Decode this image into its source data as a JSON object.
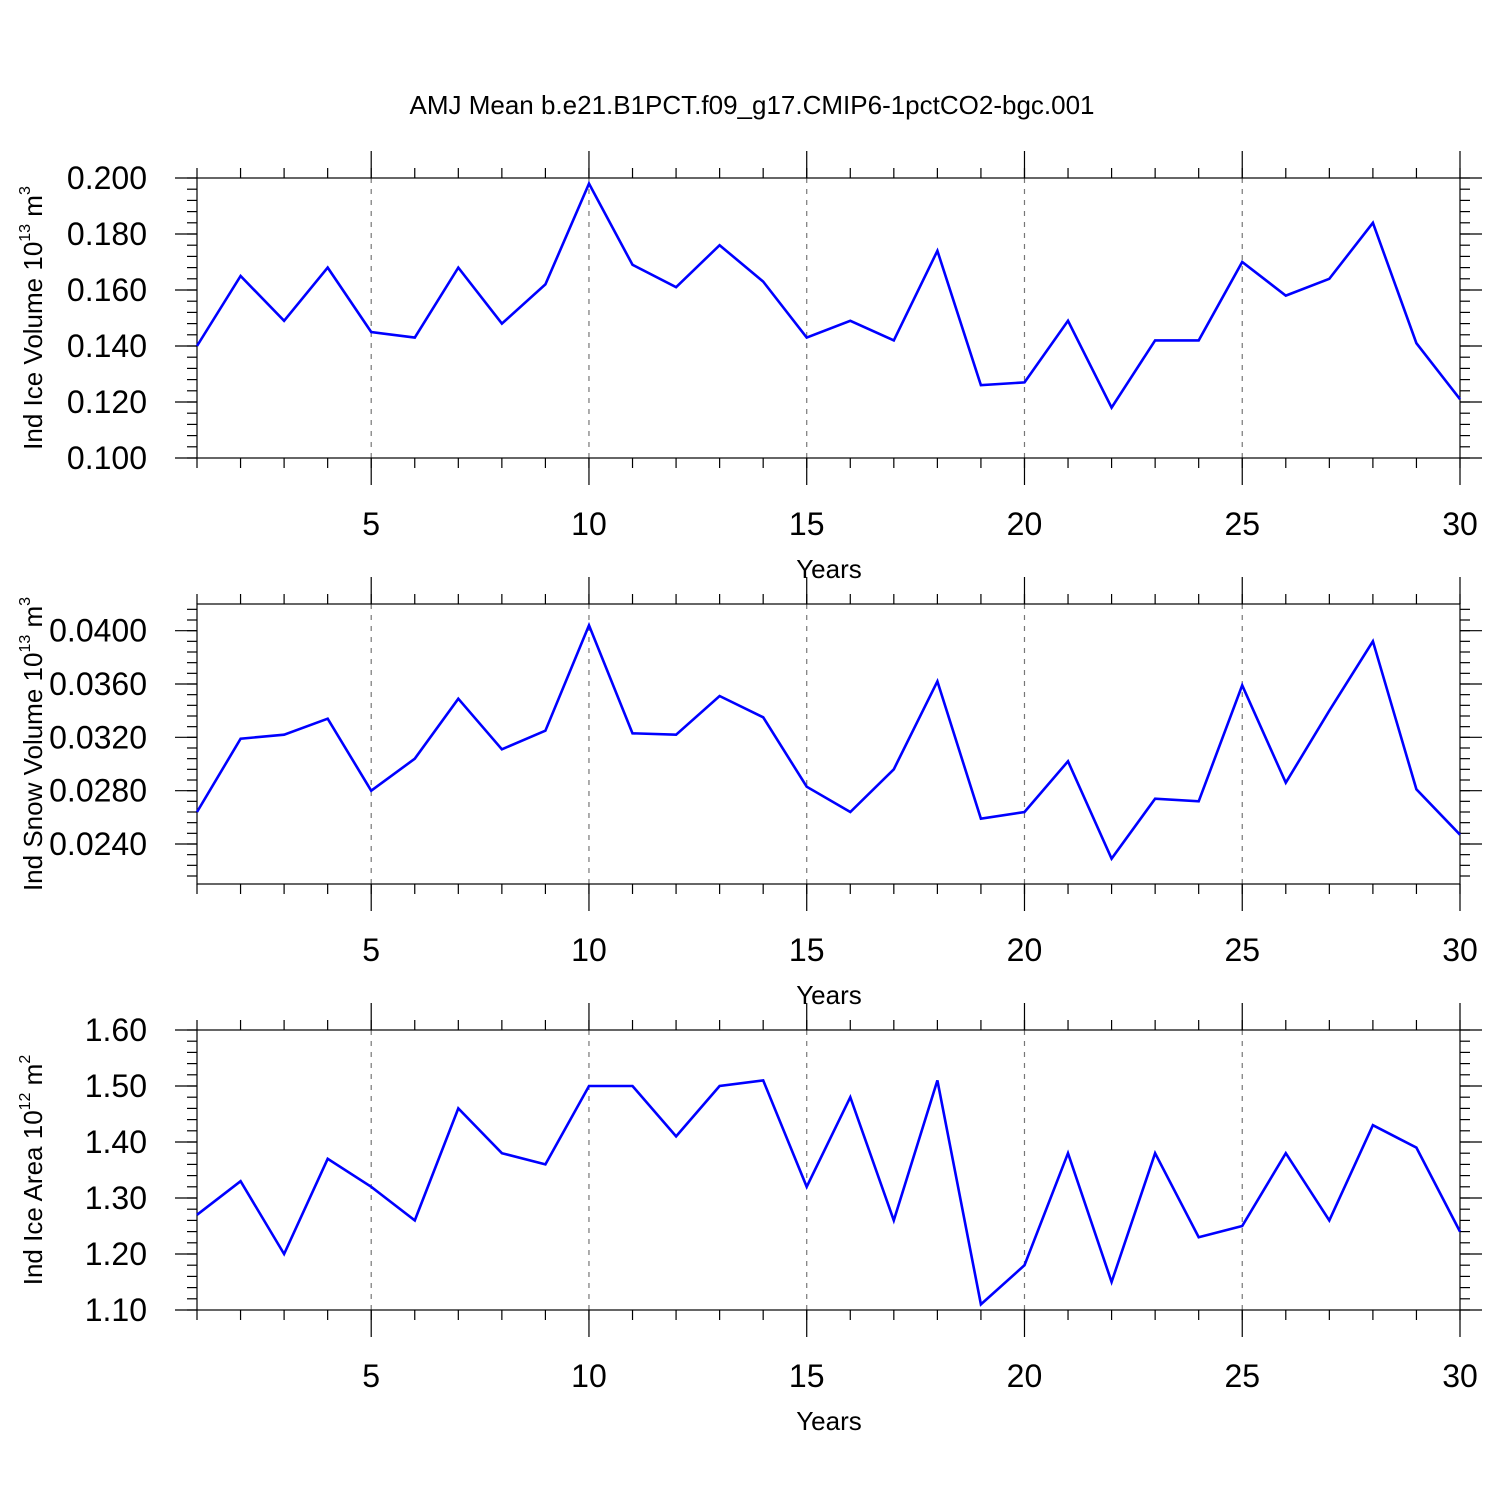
{
  "figure": {
    "title": "AMJ Mean b.e21.B1PCT.f09_g17.CMIP6-1pctCO2-bgc.001",
    "line_color": "#0000ff",
    "grid_color": "#777777"
  },
  "chart_data": [
    {
      "type": "line",
      "name": "panel-ice-volume",
      "ylabel_main": "Ind Ice Volume 10",
      "ylabel_exp": "13",
      "ylabel_unit": "m",
      "ylabel_unit_exp": "3",
      "xlabel": "Years",
      "xlim": [
        1,
        30
      ],
      "ylim": [
        0.1,
        0.2
      ],
      "x_ticks": [
        5,
        10,
        15,
        20,
        25,
        30
      ],
      "x_tick_labels": [
        "5",
        "10",
        "15",
        "20",
        "25",
        "30"
      ],
      "y_ticks": [
        0.1,
        0.12,
        0.14,
        0.16,
        0.18,
        0.2
      ],
      "y_tick_labels": [
        "0.100",
        "0.120",
        "0.140",
        "0.160",
        "0.180",
        "0.200"
      ],
      "y_minor_step": 0.004,
      "grid": "vertical dashed at major x ticks",
      "x": [
        1,
        2,
        3,
        4,
        5,
        6,
        7,
        8,
        9,
        10,
        11,
        12,
        13,
        14,
        15,
        16,
        17,
        18,
        19,
        20,
        21,
        22,
        23,
        24,
        25,
        26,
        27,
        28,
        29,
        30
      ],
      "values": [
        0.14,
        0.165,
        0.149,
        0.168,
        0.145,
        0.143,
        0.168,
        0.148,
        0.162,
        0.198,
        0.169,
        0.161,
        0.176,
        0.163,
        0.143,
        0.149,
        0.142,
        0.174,
        0.126,
        0.127,
        0.149,
        0.118,
        0.142,
        0.142,
        0.17,
        0.158,
        0.164,
        0.184,
        0.141,
        0.121
      ]
    },
    {
      "type": "line",
      "name": "panel-snow-volume",
      "ylabel_main": "Ind Snow Volume 10",
      "ylabel_exp": "13",
      "ylabel_unit": "m",
      "ylabel_unit_exp": "3",
      "xlabel": "Years",
      "xlim": [
        1,
        30
      ],
      "ylim": [
        0.021,
        0.042
      ],
      "x_ticks": [
        5,
        10,
        15,
        20,
        25,
        30
      ],
      "x_tick_labels": [
        "5",
        "10",
        "15",
        "20",
        "25",
        "30"
      ],
      "y_ticks": [
        0.024,
        0.028,
        0.032,
        0.036,
        0.04
      ],
      "y_tick_labels": [
        "0.0240",
        "0.0280",
        "0.0320",
        "0.0360",
        "0.0400"
      ],
      "y_minor_step": 0.0008,
      "grid": "vertical dashed at major x ticks",
      "x": [
        1,
        2,
        3,
        4,
        5,
        6,
        7,
        8,
        9,
        10,
        11,
        12,
        13,
        14,
        15,
        16,
        17,
        18,
        19,
        20,
        21,
        22,
        23,
        24,
        25,
        26,
        27,
        28,
        29,
        30
      ],
      "values": [
        0.0264,
        0.0319,
        0.0322,
        0.0334,
        0.028,
        0.0304,
        0.0349,
        0.0311,
        0.0325,
        0.0404,
        0.0323,
        0.0322,
        0.0351,
        0.0335,
        0.0283,
        0.0264,
        0.0296,
        0.0362,
        0.0259,
        0.0264,
        0.0302,
        0.0229,
        0.0274,
        0.0272,
        0.0359,
        0.0286,
        0.034,
        0.0392,
        0.0281,
        0.0247
      ]
    },
    {
      "type": "line",
      "name": "panel-ice-area",
      "ylabel_main": "Ind Ice Area 10",
      "ylabel_exp": "12",
      "ylabel_unit": "m",
      "ylabel_unit_exp": "2",
      "xlabel": "Years",
      "xlim": [
        1,
        30
      ],
      "ylim": [
        1.1,
        1.6
      ],
      "x_ticks": [
        5,
        10,
        15,
        20,
        25,
        30
      ],
      "x_tick_labels": [
        "5",
        "10",
        "15",
        "20",
        "25",
        "30"
      ],
      "y_ticks": [
        1.1,
        1.2,
        1.3,
        1.4,
        1.5,
        1.6
      ],
      "y_tick_labels": [
        "1.10",
        "1.20",
        "1.30",
        "1.40",
        "1.50",
        "1.60"
      ],
      "y_minor_step": 0.02,
      "grid": "vertical dashed at major x ticks",
      "x": [
        1,
        2,
        3,
        4,
        5,
        6,
        7,
        8,
        9,
        10,
        11,
        12,
        13,
        14,
        15,
        16,
        17,
        18,
        19,
        20,
        21,
        22,
        23,
        24,
        25,
        26,
        27,
        28,
        29,
        30
      ],
      "values": [
        1.27,
        1.33,
        1.2,
        1.37,
        1.32,
        1.26,
        1.46,
        1.38,
        1.36,
        1.5,
        1.5,
        1.41,
        1.5,
        1.51,
        1.32,
        1.48,
        1.26,
        1.51,
        1.11,
        1.18,
        1.38,
        1.15,
        1.38,
        1.23,
        1.25,
        1.38,
        1.26,
        1.43,
        1.39,
        1.24
      ]
    }
  ]
}
